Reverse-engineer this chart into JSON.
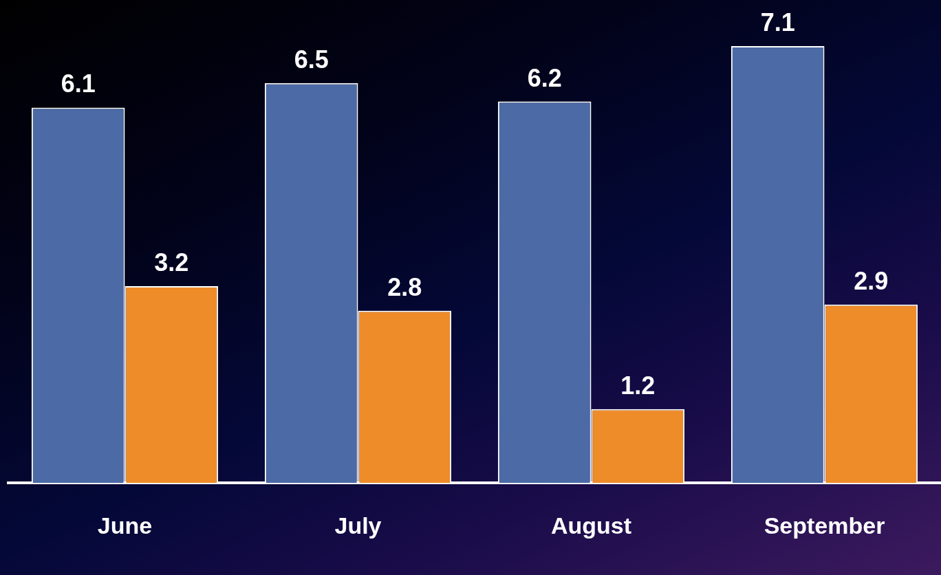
{
  "chart_data": {
    "type": "bar",
    "categories": [
      "June",
      "July",
      "August",
      "September"
    ],
    "series": [
      {
        "color": "#4b6aa6",
        "values": [
          6.1,
          6.5,
          6.2,
          7.1
        ]
      },
      {
        "color": "#ee8c2a",
        "values": [
          3.2,
          2.8,
          1.2,
          2.9
        ]
      }
    ],
    "data_labels": true,
    "grid": false,
    "legend": false
  }
}
